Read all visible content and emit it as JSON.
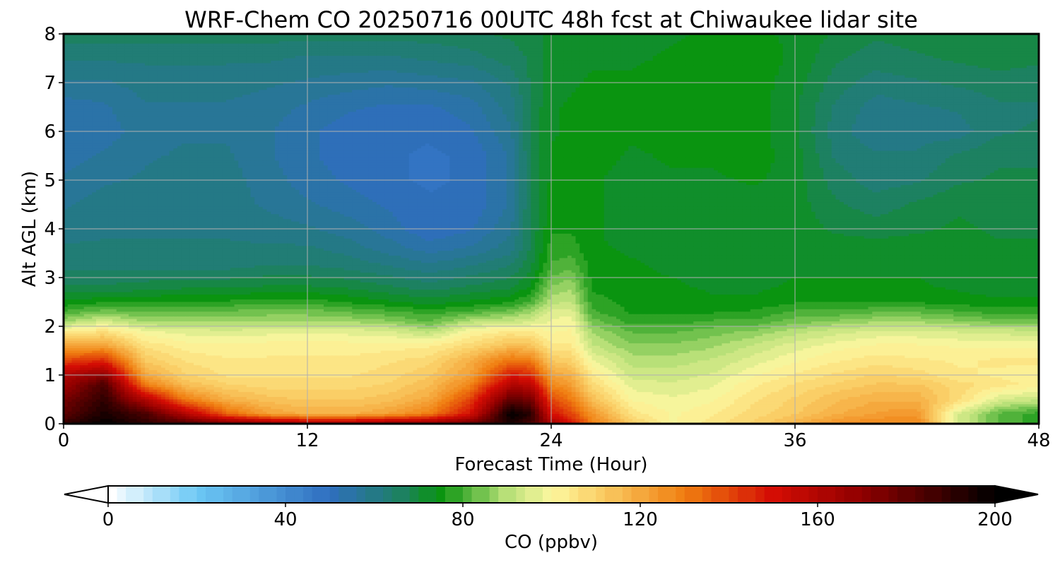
{
  "chart_data": {
    "type": "heatmap",
    "title": "WRF-Chem CO  20250716 00UTC 48h fcst at Chiwaukee lidar site",
    "xlabel": "Forecast Time (Hour)",
    "ylabel": "Alt AGL (km)",
    "xlim": [
      0,
      48
    ],
    "ylim": [
      0,
      8
    ],
    "xticks": [
      0,
      12,
      24,
      36,
      48
    ],
    "yticks": [
      0,
      1,
      2,
      3,
      4,
      5,
      6,
      7,
      8
    ],
    "grid": true,
    "colorbar": {
      "label": "CO  (ppbv)",
      "min": 0,
      "max": 200,
      "ticks": [
        0,
        40,
        80,
        120,
        160,
        200
      ],
      "extend": "both",
      "colormap_stops": [
        {
          "v": 0,
          "c": "#ffffff"
        },
        {
          "v": 20,
          "c": "#6cc8f5"
        },
        {
          "v": 50,
          "c": "#2f6ebf"
        },
        {
          "v": 65,
          "c": "#1f7f6a"
        },
        {
          "v": 75,
          "c": "#0a9410"
        },
        {
          "v": 90,
          "c": "#b8e078"
        },
        {
          "v": 100,
          "c": "#fdf7a0"
        },
        {
          "v": 110,
          "c": "#fad26a"
        },
        {
          "v": 130,
          "c": "#f07e10"
        },
        {
          "v": 150,
          "c": "#d40d04"
        },
        {
          "v": 170,
          "c": "#8f0000"
        },
        {
          "v": 200,
          "c": "#000000"
        }
      ]
    },
    "hours": [
      0,
      2,
      4,
      6,
      8,
      10,
      12,
      14,
      16,
      18,
      20,
      22,
      23,
      24,
      25,
      26,
      28,
      30,
      32,
      34,
      36,
      38,
      40,
      42,
      44,
      46,
      48
    ],
    "altitudes_km": [
      0,
      0.2,
      0.5,
      0.8,
      1.0,
      1.3,
      1.6,
      1.9,
      2.1,
      2.3,
      2.5,
      2.8,
      3.2,
      3.6,
      4.0,
      4.5,
      5.0,
      5.5,
      6.0,
      6.5,
      7.0,
      7.5,
      8.0
    ],
    "values": [
      [
        190,
        200,
        190,
        185,
        175,
        170,
        165,
        165,
        170,
        170,
        178,
        195,
        185,
        165,
        150,
        130,
        112,
        100,
        105,
        110,
        118,
        125,
        128,
        128,
        95,
        82,
        78
      ],
      [
        180,
        195,
        185,
        160,
        135,
        122,
        118,
        118,
        122,
        130,
        150,
        200,
        192,
        150,
        140,
        125,
        105,
        100,
        103,
        108,
        112,
        118,
        122,
        124,
        95,
        82,
        78
      ],
      [
        175,
        190,
        160,
        130,
        118,
        114,
        112,
        112,
        114,
        120,
        140,
        180,
        175,
        140,
        130,
        115,
        100,
        98,
        100,
        106,
        110,
        115,
        118,
        118,
        108,
        95,
        92
      ],
      [
        165,
        185,
        130,
        115,
        110,
        108,
        108,
        108,
        110,
        115,
        128,
        160,
        158,
        128,
        122,
        108,
        96,
        95,
        97,
        103,
        107,
        110,
        113,
        113,
        108,
        105,
        102
      ],
      [
        160,
        170,
        120,
        110,
        106,
        106,
        106,
        106,
        108,
        112,
        122,
        148,
        145,
        122,
        118,
        104,
        93,
        93,
        95,
        100,
        104,
        107,
        110,
        108,
        104,
        103,
        102
      ],
      [
        140,
        145,
        112,
        106,
        104,
        104,
        104,
        104,
        106,
        108,
        118,
        132,
        130,
        112,
        110,
        98,
        90,
        90,
        92,
        96,
        100,
        103,
        105,
        104,
        103,
        104,
        104
      ],
      [
        120,
        122,
        106,
        102,
        101,
        102,
        102,
        102,
        102,
        103,
        108,
        115,
        114,
        104,
        104,
        92,
        86,
        86,
        88,
        92,
        96,
        99,
        101,
        101,
        100,
        100,
        100
      ],
      [
        102,
        106,
        98,
        96,
        95,
        96,
        96,
        96,
        95,
        90,
        100,
        104,
        103,
        100,
        101,
        88,
        82,
        82,
        84,
        86,
        90,
        93,
        95,
        95,
        94,
        93,
        92
      ],
      [
        88,
        94,
        88,
        88,
        88,
        88,
        88,
        88,
        86,
        82,
        90,
        92,
        94,
        98,
        99,
        84,
        78,
        78,
        80,
        80,
        84,
        86,
        88,
        88,
        86,
        84,
        84
      ],
      [
        80,
        84,
        82,
        83,
        83,
        84,
        84,
        82,
        80,
        78,
        80,
        84,
        88,
        96,
        96,
        80,
        76,
        76,
        76,
        77,
        80,
        80,
        82,
        82,
        80,
        78,
        78
      ],
      [
        74,
        76,
        76,
        77,
        77,
        78,
        78,
        76,
        74,
        72,
        74,
        76,
        80,
        90,
        92,
        78,
        75,
        75,
        74,
        74,
        76,
        76,
        76,
        76,
        75,
        74,
        74
      ],
      [
        68,
        68,
        69,
        70,
        70,
        71,
        71,
        70,
        68,
        66,
        68,
        70,
        74,
        86,
        88,
        76,
        74,
        74,
        73,
        73,
        74,
        74,
        74,
        74,
        73,
        72,
        72
      ],
      [
        64,
        64,
        64,
        64,
        64,
        65,
        65,
        64,
        62,
        60,
        62,
        65,
        70,
        80,
        82,
        75,
        74,
        73,
        72,
        72,
        73,
        73,
        73,
        73,
        72,
        72,
        72
      ],
      [
        62,
        62,
        62,
        62,
        62,
        62,
        62,
        60,
        57,
        54,
        56,
        60,
        68,
        78,
        78,
        74,
        73,
        72,
        72,
        72,
        72,
        72,
        72,
        72,
        72,
        71,
        71
      ],
      [
        60,
        61,
        61,
        61,
        61,
        60,
        59,
        57,
        54,
        50,
        52,
        58,
        68,
        76,
        76,
        74,
        72,
        72,
        72,
        72,
        72,
        70,
        69,
        70,
        71,
        70,
        70
      ],
      [
        58,
        60,
        60,
        60,
        60,
        58,
        56,
        54,
        52,
        50,
        50,
        56,
        68,
        75,
        75,
        74,
        72,
        72,
        72,
        72,
        72,
        68,
        66,
        68,
        70,
        69,
        69
      ],
      [
        56,
        58,
        59,
        60,
        60,
        57,
        54,
        52,
        50,
        49,
        50,
        56,
        68,
        74,
        75,
        74,
        72,
        73,
        73,
        74,
        72,
        66,
        63,
        64,
        67,
        68,
        68
      ],
      [
        54,
        56,
        58,
        59,
        59,
        56,
        53,
        51,
        50,
        49,
        50,
        56,
        68,
        74,
        75,
        75,
        73,
        74,
        74,
        75,
        72,
        64,
        62,
        62,
        65,
        67,
        67
      ],
      [
        53,
        54,
        57,
        58,
        58,
        56,
        53,
        51,
        50,
        50,
        52,
        58,
        68,
        73,
        74,
        75,
        74,
        75,
        75,
        75,
        71,
        63,
        59,
        60,
        60,
        64,
        65
      ],
      [
        54,
        55,
        58,
        58,
        58,
        57,
        55,
        53,
        52,
        52,
        54,
        60,
        68,
        73,
        74,
        75,
        74,
        75,
        75,
        75,
        71,
        64,
        60,
        61,
        62,
        64,
        64
      ],
      [
        58,
        58,
        60,
        60,
        60,
        59,
        58,
        57,
        56,
        57,
        58,
        62,
        68,
        72,
        73,
        74,
        74,
        75,
        75,
        75,
        72,
        66,
        63,
        64,
        65,
        66,
        66
      ],
      [
        62,
        62,
        62,
        62,
        62,
        62,
        61,
        61,
        61,
        62,
        63,
        66,
        68,
        72,
        72,
        73,
        73,
        74,
        75,
        75,
        73,
        68,
        66,
        67,
        68,
        69,
        68
      ],
      [
        66,
        66,
        66,
        66,
        66,
        66,
        66,
        66,
        66,
        66,
        67,
        68,
        69,
        72,
        72,
        72,
        72,
        73,
        74,
        74,
        73,
        70,
        68,
        69,
        70,
        70,
        70
      ]
    ]
  }
}
